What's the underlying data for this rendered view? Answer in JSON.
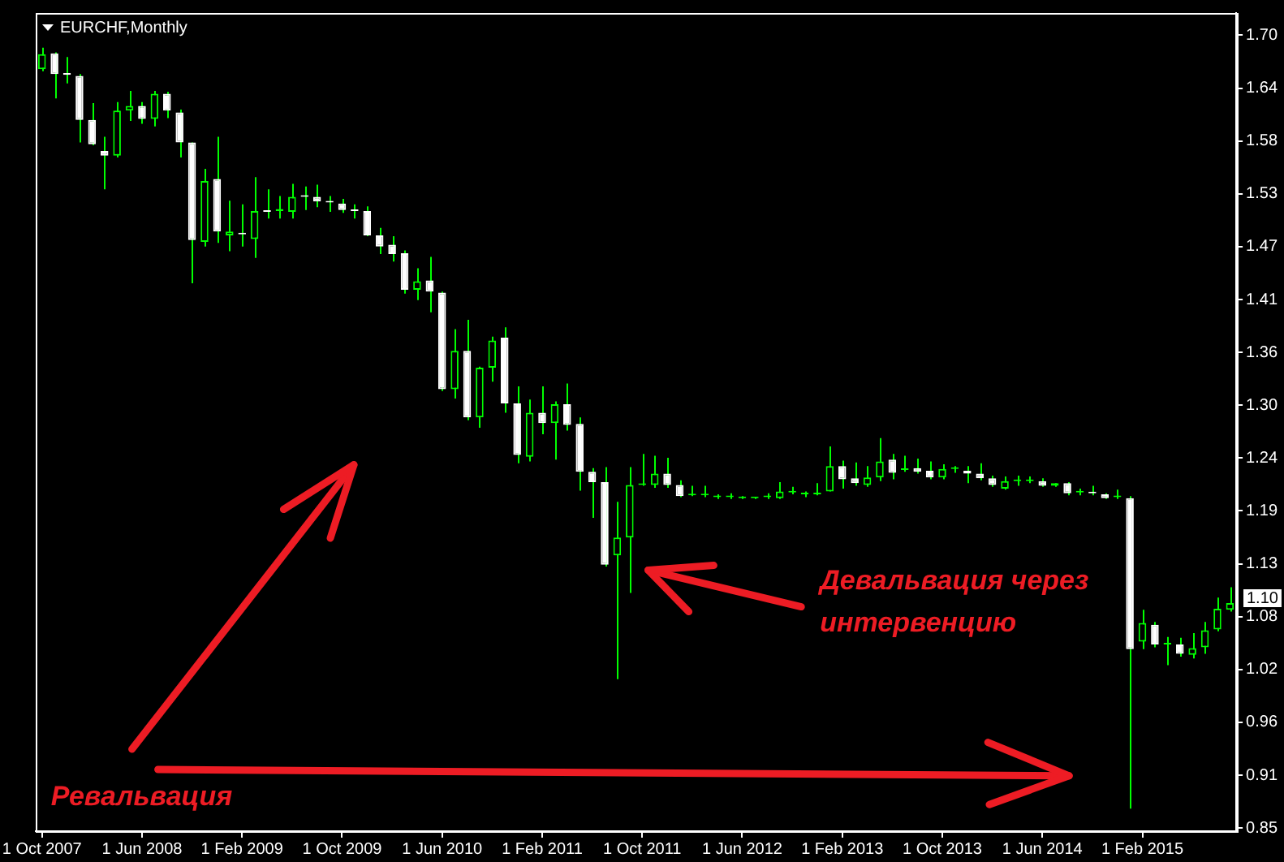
{
  "chart_data": {
    "type": "candlestick",
    "title": "EURCHF,Monthly",
    "categories": [
      "1 Oct 2007",
      null,
      null,
      null,
      null,
      null,
      null,
      null,
      "1 Jun 2008",
      null,
      null,
      null,
      null,
      null,
      null,
      null,
      "1 Feb 2009",
      null,
      null,
      null,
      null,
      null,
      null,
      null,
      "1 Oct 2009",
      null,
      null,
      null,
      null,
      null,
      null,
      null,
      "1 Jun 2010",
      null,
      null,
      null,
      null,
      null,
      null,
      null,
      "1 Feb 2011",
      null,
      null,
      null,
      null,
      null,
      null,
      null,
      "1 Oct 2011",
      null,
      null,
      null,
      null,
      null,
      null,
      null,
      "1 Jun 2012",
      null,
      null,
      null,
      null,
      null,
      null,
      null,
      "1 Feb 2013",
      null,
      null,
      null,
      null,
      null,
      null,
      null,
      "1 Oct 2013",
      null,
      null,
      null,
      null,
      null,
      null,
      null,
      "1 Jun 2014",
      null,
      null,
      null,
      null,
      null,
      null,
      null,
      "1 Feb 2015",
      null,
      null,
      null,
      null,
      null,
      null,
      null
    ],
    "ohlc": [
      [
        1.659,
        1.682,
        1.657,
        1.675
      ],
      [
        1.676,
        1.677,
        1.628,
        1.654
      ],
      [
        1.655,
        1.672,
        1.644,
        1.653
      ],
      [
        1.652,
        1.654,
        1.581,
        1.605
      ],
      [
        1.605,
        1.623,
        1.578,
        1.579
      ],
      [
        1.572,
        1.587,
        1.531,
        1.567
      ],
      [
        1.567,
        1.624,
        1.565,
        1.615
      ],
      [
        1.615,
        1.636,
        1.604,
        1.62
      ],
      [
        1.62,
        1.624,
        1.601,
        1.606
      ],
      [
        1.606,
        1.636,
        1.598,
        1.633
      ],
      [
        1.633,
        1.635,
        1.607,
        1.615
      ],
      [
        1.613,
        1.616,
        1.565,
        1.581
      ],
      [
        1.581,
        1.581,
        1.431,
        1.477
      ],
      [
        1.475,
        1.553,
        1.47,
        1.54
      ],
      [
        1.542,
        1.587,
        1.474,
        1.486
      ],
      [
        1.482,
        1.519,
        1.465,
        1.486
      ],
      [
        1.484,
        1.515,
        1.47,
        1.483
      ],
      [
        1.478,
        1.544,
        1.458,
        1.508
      ],
      [
        1.508,
        1.531,
        1.5,
        1.507
      ],
      [
        1.508,
        1.524,
        1.5,
        1.51
      ],
      [
        1.507,
        1.537,
        1.5,
        1.523
      ],
      [
        1.524,
        1.534,
        1.509,
        1.523
      ],
      [
        1.523,
        1.536,
        1.512,
        1.518
      ],
      [
        1.518,
        1.524,
        1.507,
        1.517
      ],
      [
        1.516,
        1.521,
        1.506,
        1.509
      ],
      [
        1.509,
        1.515,
        1.5,
        1.508
      ],
      [
        1.508,
        1.513,
        1.481,
        1.482
      ],
      [
        1.482,
        1.49,
        1.462,
        1.47
      ],
      [
        1.472,
        1.481,
        1.454,
        1.462
      ],
      [
        1.463,
        1.466,
        1.42,
        1.424
      ],
      [
        1.424,
        1.447,
        1.413,
        1.433
      ],
      [
        1.434,
        1.459,
        1.4,
        1.422
      ],
      [
        1.421,
        1.422,
        1.316,
        1.318
      ],
      [
        1.318,
        1.382,
        1.308,
        1.359
      ],
      [
        1.359,
        1.392,
        1.285,
        1.288
      ],
      [
        1.288,
        1.342,
        1.277,
        1.341
      ],
      [
        1.341,
        1.374,
        1.326,
        1.37
      ],
      [
        1.373,
        1.384,
        1.293,
        1.303
      ],
      [
        1.303,
        1.321,
        1.239,
        1.248
      ],
      [
        1.246,
        1.307,
        1.241,
        1.293
      ],
      [
        1.293,
        1.321,
        1.27,
        1.282
      ],
      [
        1.282,
        1.305,
        1.243,
        1.302
      ],
      [
        1.302,
        1.324,
        1.274,
        1.28
      ],
      [
        1.281,
        1.288,
        1.21,
        1.23
      ],
      [
        1.23,
        1.234,
        1.181,
        1.219
      ],
      [
        1.219,
        1.235,
        1.129,
        1.131
      ],
      [
        1.141,
        1.198,
        1.009,
        1.16
      ],
      [
        1.16,
        1.235,
        1.101,
        1.216
      ],
      [
        1.216,
        1.249,
        1.215,
        1.217
      ],
      [
        1.216,
        1.247,
        1.213,
        1.228
      ],
      [
        1.228,
        1.245,
        1.213,
        1.216
      ],
      [
        1.216,
        1.221,
        1.203,
        1.204
      ],
      [
        1.205,
        1.215,
        1.204,
        1.205
      ],
      [
        1.205,
        1.215,
        1.203,
        1.205
      ],
      [
        1.203,
        1.206,
        1.201,
        1.203
      ],
      [
        1.203,
        1.207,
        1.201,
        1.203
      ],
      [
        1.202,
        1.204,
        1.201,
        1.202
      ],
      [
        1.202,
        1.203,
        1.201,
        1.202
      ],
      [
        1.203,
        1.207,
        1.201,
        1.203
      ],
      [
        1.202,
        1.219,
        1.201,
        1.209
      ],
      [
        1.208,
        1.214,
        1.206,
        1.208
      ],
      [
        1.206,
        1.209,
        1.203,
        1.206
      ],
      [
        1.206,
        1.218,
        1.205,
        1.206
      ],
      [
        1.209,
        1.257,
        1.209,
        1.236
      ],
      [
        1.236,
        1.242,
        1.212,
        1.222
      ],
      [
        1.223,
        1.24,
        1.215,
        1.218
      ],
      [
        1.216,
        1.236,
        1.214,
        1.224
      ],
      [
        1.224,
        1.266,
        1.22,
        1.241
      ],
      [
        1.243,
        1.249,
        1.222,
        1.229
      ],
      [
        1.232,
        1.247,
        1.23,
        1.232
      ],
      [
        1.234,
        1.244,
        1.228,
        1.23
      ],
      [
        1.231,
        1.241,
        1.222,
        1.224
      ],
      [
        1.224,
        1.238,
        1.222,
        1.233
      ],
      [
        1.233,
        1.236,
        1.229,
        1.233
      ],
      [
        1.231,
        1.236,
        1.218,
        1.228
      ],
      [
        1.228,
        1.239,
        1.221,
        1.223
      ],
      [
        1.223,
        1.226,
        1.214,
        1.216
      ],
      [
        1.212,
        1.225,
        1.211,
        1.22
      ],
      [
        1.22,
        1.226,
        1.215,
        1.22
      ],
      [
        1.22,
        1.225,
        1.218,
        1.22
      ],
      [
        1.22,
        1.223,
        1.214,
        1.215
      ],
      [
        1.215,
        1.218,
        1.214,
        1.218
      ],
      [
        1.218,
        1.219,
        1.205,
        1.207
      ],
      [
        1.208,
        1.212,
        1.205,
        1.208
      ],
      [
        1.208,
        1.215,
        1.205,
        1.207
      ],
      [
        1.206,
        1.207,
        1.201,
        1.202
      ],
      [
        1.203,
        1.211,
        1.201,
        1.203
      ],
      [
        1.202,
        1.204,
        0.871,
        1.041
      ],
      [
        1.049,
        1.083,
        1.041,
        1.069
      ],
      [
        1.067,
        1.07,
        1.043,
        1.046
      ],
      [
        1.046,
        1.054,
        1.024,
        1.046
      ],
      [
        1.046,
        1.053,
        1.033,
        1.036
      ],
      [
        1.035,
        1.058,
        1.031,
        1.042
      ],
      [
        1.043,
        1.07,
        1.036,
        1.061
      ],
      [
        1.062,
        1.096,
        1.06,
        1.084
      ],
      [
        1.083,
        1.107,
        1.081,
        1.09
      ]
    ],
    "color": "#00ff00",
    "colors": [
      "#00ff00",
      "#ffffff",
      "#ffffff",
      "#ffffff",
      "#ffffff",
      "#ffffff",
      "#00ff00",
      "#00ff00",
      "#ffffff",
      "#00ff00",
      "#ffffff",
      "#ffffff",
      "#ffffff",
      "#00ff00",
      "#ffffff",
      "#00ff00",
      "#ffffff",
      "#00ff00",
      "#ffffff",
      "#00ff00",
      "#00ff00",
      "#ffffff",
      "#ffffff",
      "#ffffff",
      "#ffffff",
      "#ffffff",
      "#ffffff",
      "#ffffff",
      "#ffffff",
      "#ffffff",
      "#00ff00",
      "#ffffff",
      "#ffffff",
      "#00ff00",
      "#ffffff",
      "#00ff00",
      "#00ff00",
      "#ffffff",
      "#ffffff",
      "#00ff00",
      "#ffffff",
      "#00ff00",
      "#ffffff",
      "#ffffff",
      "#ffffff",
      "#ffffff",
      "#00ff00",
      "#00ff00",
      "#00ff00",
      "#00ff00",
      "#ffffff",
      "#ffffff",
      "#00ff00",
      "#00ff00",
      "#00ff00",
      "#00ff00",
      "#00ff00",
      "#00ff00",
      "#00ff00",
      "#00ff00",
      "#00ff00",
      "#00ff00",
      "#00ff00",
      "#00ff00",
      "#ffffff",
      "#ffffff",
      "#00ff00",
      "#00ff00",
      "#ffffff",
      "#00ff00",
      "#ffffff",
      "#ffffff",
      "#00ff00",
      "#00ff00",
      "#ffffff",
      "#ffffff",
      "#ffffff",
      "#00ff00",
      "#00ff00",
      "#00ff00",
      "#ffffff",
      "#00ff00",
      "#ffffff",
      "#00ff00",
      "#ffffff",
      "#ffffff",
      "#00ff00",
      "#ffffff",
      "#00ff00",
      "#ffffff",
      "#00ff00",
      "#ffffff",
      "#00ff00",
      "#00ff00",
      "#00ff00",
      "#00ff00"
    ],
    "ylim": [
      0.847,
      1.719
    ],
    "yticks": [
      {
        "value": 0.8503,
        "label": "0.85"
      },
      {
        "value": 0.9066,
        "label": "0.91"
      },
      {
        "value": 0.963,
        "label": "0.96"
      },
      {
        "value": 1.0193,
        "label": "1.02"
      },
      {
        "value": 1.0756,
        "label": "1.08"
      },
      {
        "value": 1.132,
        "label": "1.13"
      },
      {
        "value": 1.1883,
        "label": "1.19"
      },
      {
        "value": 1.2446,
        "label": "1.24"
      },
      {
        "value": 1.3009,
        "label": "1.30"
      },
      {
        "value": 1.3573,
        "label": "1.36"
      },
      {
        "value": 1.4136,
        "label": "1.41"
      },
      {
        "value": 1.4699,
        "label": "1.47"
      },
      {
        "value": 1.5263,
        "label": "1.53"
      },
      {
        "value": 1.5826,
        "label": "1.58"
      },
      {
        "value": 1.6389,
        "label": "1.64"
      },
      {
        "value": 1.6953,
        "label": "1.70"
      }
    ],
    "annotations": [
      "Девальвация через интервенцию",
      "Ревальвация",
      "1.10"
    ]
  }
}
